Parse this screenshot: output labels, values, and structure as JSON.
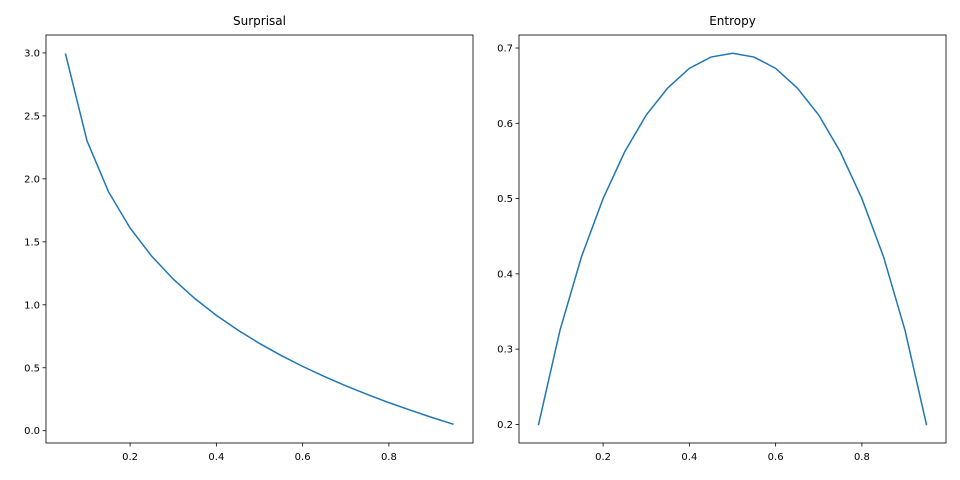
{
  "chart_data": [
    {
      "type": "line",
      "title": "Surprisal",
      "x": [
        0.05,
        0.1,
        0.15,
        0.2,
        0.25,
        0.3,
        0.35,
        0.4,
        0.45,
        0.5,
        0.55,
        0.6,
        0.65,
        0.7,
        0.75,
        0.8,
        0.85,
        0.9,
        0.95
      ],
      "series": [
        {
          "color": "#1f77b4",
          "values": [
            2.996,
            2.303,
            1.897,
            1.609,
            1.386,
            1.204,
            1.05,
            0.916,
            0.799,
            0.693,
            0.598,
            0.511,
            0.431,
            0.357,
            0.288,
            0.223,
            0.163,
            0.105,
            0.051
          ]
        }
      ],
      "xlim": [
        0.005,
        0.995
      ],
      "ylim": [
        -0.0975,
        3.1425
      ],
      "xticks": [
        0.2,
        0.4,
        0.6,
        0.8
      ],
      "yticks": [
        {
          "value": 0,
          "label": "0.0"
        },
        0.5,
        {
          "value": 1,
          "label": "1.0"
        },
        1.5,
        {
          "value": 2,
          "label": "2.0"
        },
        2.5,
        {
          "value": 3,
          "label": "3.0"
        }
      ]
    },
    {
      "type": "line",
      "title": "Entropy",
      "x": [
        0.05,
        0.1,
        0.15,
        0.2,
        0.25,
        0.3,
        0.35,
        0.4,
        0.45,
        0.5,
        0.55,
        0.6,
        0.65,
        0.7,
        0.75,
        0.8,
        0.85,
        0.9,
        0.95
      ],
      "series": [
        {
          "color": "#1f77b4",
          "values": [
            0.199,
            0.325,
            0.423,
            0.5,
            0.562,
            0.611,
            0.647,
            0.673,
            0.688,
            0.693,
            0.688,
            0.673,
            0.647,
            0.611,
            0.562,
            0.5,
            0.423,
            0.325,
            0.199
          ]
        }
      ],
      "xlim": [
        0.005,
        0.995
      ],
      "ylim": [
        0.1753,
        0.7173
      ],
      "xticks": [
        0.2,
        0.4,
        0.6,
        0.8
      ],
      "yticks": [
        0.2,
        0.3,
        0.4,
        0.5,
        0.6,
        0.7
      ]
    }
  ]
}
